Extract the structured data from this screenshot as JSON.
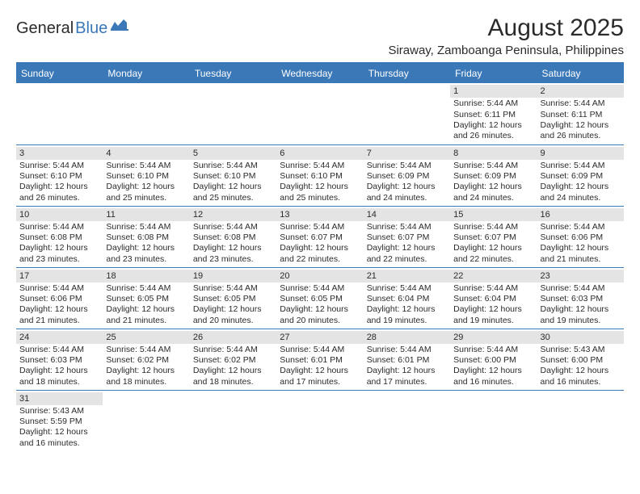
{
  "logo": {
    "part1": "General",
    "part2": "Blue"
  },
  "title": "August 2025",
  "location": "Siraway, Zamboanga Peninsula, Philippines",
  "colors": {
    "accent": "#3b78b8",
    "daynum_bg": "#e4e4e4",
    "text": "#2b2b2b",
    "background": "#ffffff",
    "header_text": "#ffffff"
  },
  "dayHeaders": [
    "Sunday",
    "Monday",
    "Tuesday",
    "Wednesday",
    "Thursday",
    "Friday",
    "Saturday"
  ],
  "weeks": [
    [
      null,
      null,
      null,
      null,
      null,
      {
        "n": "1",
        "sr": "Sunrise: 5:44 AM",
        "ss": "Sunset: 6:11 PM",
        "dl": "Daylight: 12 hours and 26 minutes."
      },
      {
        "n": "2",
        "sr": "Sunrise: 5:44 AM",
        "ss": "Sunset: 6:11 PM",
        "dl": "Daylight: 12 hours and 26 minutes."
      }
    ],
    [
      {
        "n": "3",
        "sr": "Sunrise: 5:44 AM",
        "ss": "Sunset: 6:10 PM",
        "dl": "Daylight: 12 hours and 26 minutes."
      },
      {
        "n": "4",
        "sr": "Sunrise: 5:44 AM",
        "ss": "Sunset: 6:10 PM",
        "dl": "Daylight: 12 hours and 25 minutes."
      },
      {
        "n": "5",
        "sr": "Sunrise: 5:44 AM",
        "ss": "Sunset: 6:10 PM",
        "dl": "Daylight: 12 hours and 25 minutes."
      },
      {
        "n": "6",
        "sr": "Sunrise: 5:44 AM",
        "ss": "Sunset: 6:10 PM",
        "dl": "Daylight: 12 hours and 25 minutes."
      },
      {
        "n": "7",
        "sr": "Sunrise: 5:44 AM",
        "ss": "Sunset: 6:09 PM",
        "dl": "Daylight: 12 hours and 24 minutes."
      },
      {
        "n": "8",
        "sr": "Sunrise: 5:44 AM",
        "ss": "Sunset: 6:09 PM",
        "dl": "Daylight: 12 hours and 24 minutes."
      },
      {
        "n": "9",
        "sr": "Sunrise: 5:44 AM",
        "ss": "Sunset: 6:09 PM",
        "dl": "Daylight: 12 hours and 24 minutes."
      }
    ],
    [
      {
        "n": "10",
        "sr": "Sunrise: 5:44 AM",
        "ss": "Sunset: 6:08 PM",
        "dl": "Daylight: 12 hours and 23 minutes."
      },
      {
        "n": "11",
        "sr": "Sunrise: 5:44 AM",
        "ss": "Sunset: 6:08 PM",
        "dl": "Daylight: 12 hours and 23 minutes."
      },
      {
        "n": "12",
        "sr": "Sunrise: 5:44 AM",
        "ss": "Sunset: 6:08 PM",
        "dl": "Daylight: 12 hours and 23 minutes."
      },
      {
        "n": "13",
        "sr": "Sunrise: 5:44 AM",
        "ss": "Sunset: 6:07 PM",
        "dl": "Daylight: 12 hours and 22 minutes."
      },
      {
        "n": "14",
        "sr": "Sunrise: 5:44 AM",
        "ss": "Sunset: 6:07 PM",
        "dl": "Daylight: 12 hours and 22 minutes."
      },
      {
        "n": "15",
        "sr": "Sunrise: 5:44 AM",
        "ss": "Sunset: 6:07 PM",
        "dl": "Daylight: 12 hours and 22 minutes."
      },
      {
        "n": "16",
        "sr": "Sunrise: 5:44 AM",
        "ss": "Sunset: 6:06 PM",
        "dl": "Daylight: 12 hours and 21 minutes."
      }
    ],
    [
      {
        "n": "17",
        "sr": "Sunrise: 5:44 AM",
        "ss": "Sunset: 6:06 PM",
        "dl": "Daylight: 12 hours and 21 minutes."
      },
      {
        "n": "18",
        "sr": "Sunrise: 5:44 AM",
        "ss": "Sunset: 6:05 PM",
        "dl": "Daylight: 12 hours and 21 minutes."
      },
      {
        "n": "19",
        "sr": "Sunrise: 5:44 AM",
        "ss": "Sunset: 6:05 PM",
        "dl": "Daylight: 12 hours and 20 minutes."
      },
      {
        "n": "20",
        "sr": "Sunrise: 5:44 AM",
        "ss": "Sunset: 6:05 PM",
        "dl": "Daylight: 12 hours and 20 minutes."
      },
      {
        "n": "21",
        "sr": "Sunrise: 5:44 AM",
        "ss": "Sunset: 6:04 PM",
        "dl": "Daylight: 12 hours and 19 minutes."
      },
      {
        "n": "22",
        "sr": "Sunrise: 5:44 AM",
        "ss": "Sunset: 6:04 PM",
        "dl": "Daylight: 12 hours and 19 minutes."
      },
      {
        "n": "23",
        "sr": "Sunrise: 5:44 AM",
        "ss": "Sunset: 6:03 PM",
        "dl": "Daylight: 12 hours and 19 minutes."
      }
    ],
    [
      {
        "n": "24",
        "sr": "Sunrise: 5:44 AM",
        "ss": "Sunset: 6:03 PM",
        "dl": "Daylight: 12 hours and 18 minutes."
      },
      {
        "n": "25",
        "sr": "Sunrise: 5:44 AM",
        "ss": "Sunset: 6:02 PM",
        "dl": "Daylight: 12 hours and 18 minutes."
      },
      {
        "n": "26",
        "sr": "Sunrise: 5:44 AM",
        "ss": "Sunset: 6:02 PM",
        "dl": "Daylight: 12 hours and 18 minutes."
      },
      {
        "n": "27",
        "sr": "Sunrise: 5:44 AM",
        "ss": "Sunset: 6:01 PM",
        "dl": "Daylight: 12 hours and 17 minutes."
      },
      {
        "n": "28",
        "sr": "Sunrise: 5:44 AM",
        "ss": "Sunset: 6:01 PM",
        "dl": "Daylight: 12 hours and 17 minutes."
      },
      {
        "n": "29",
        "sr": "Sunrise: 5:44 AM",
        "ss": "Sunset: 6:00 PM",
        "dl": "Daylight: 12 hours and 16 minutes."
      },
      {
        "n": "30",
        "sr": "Sunrise: 5:43 AM",
        "ss": "Sunset: 6:00 PM",
        "dl": "Daylight: 12 hours and 16 minutes."
      }
    ],
    [
      {
        "n": "31",
        "sr": "Sunrise: 5:43 AM",
        "ss": "Sunset: 5:59 PM",
        "dl": "Daylight: 12 hours and 16 minutes."
      },
      null,
      null,
      null,
      null,
      null,
      null
    ]
  ]
}
